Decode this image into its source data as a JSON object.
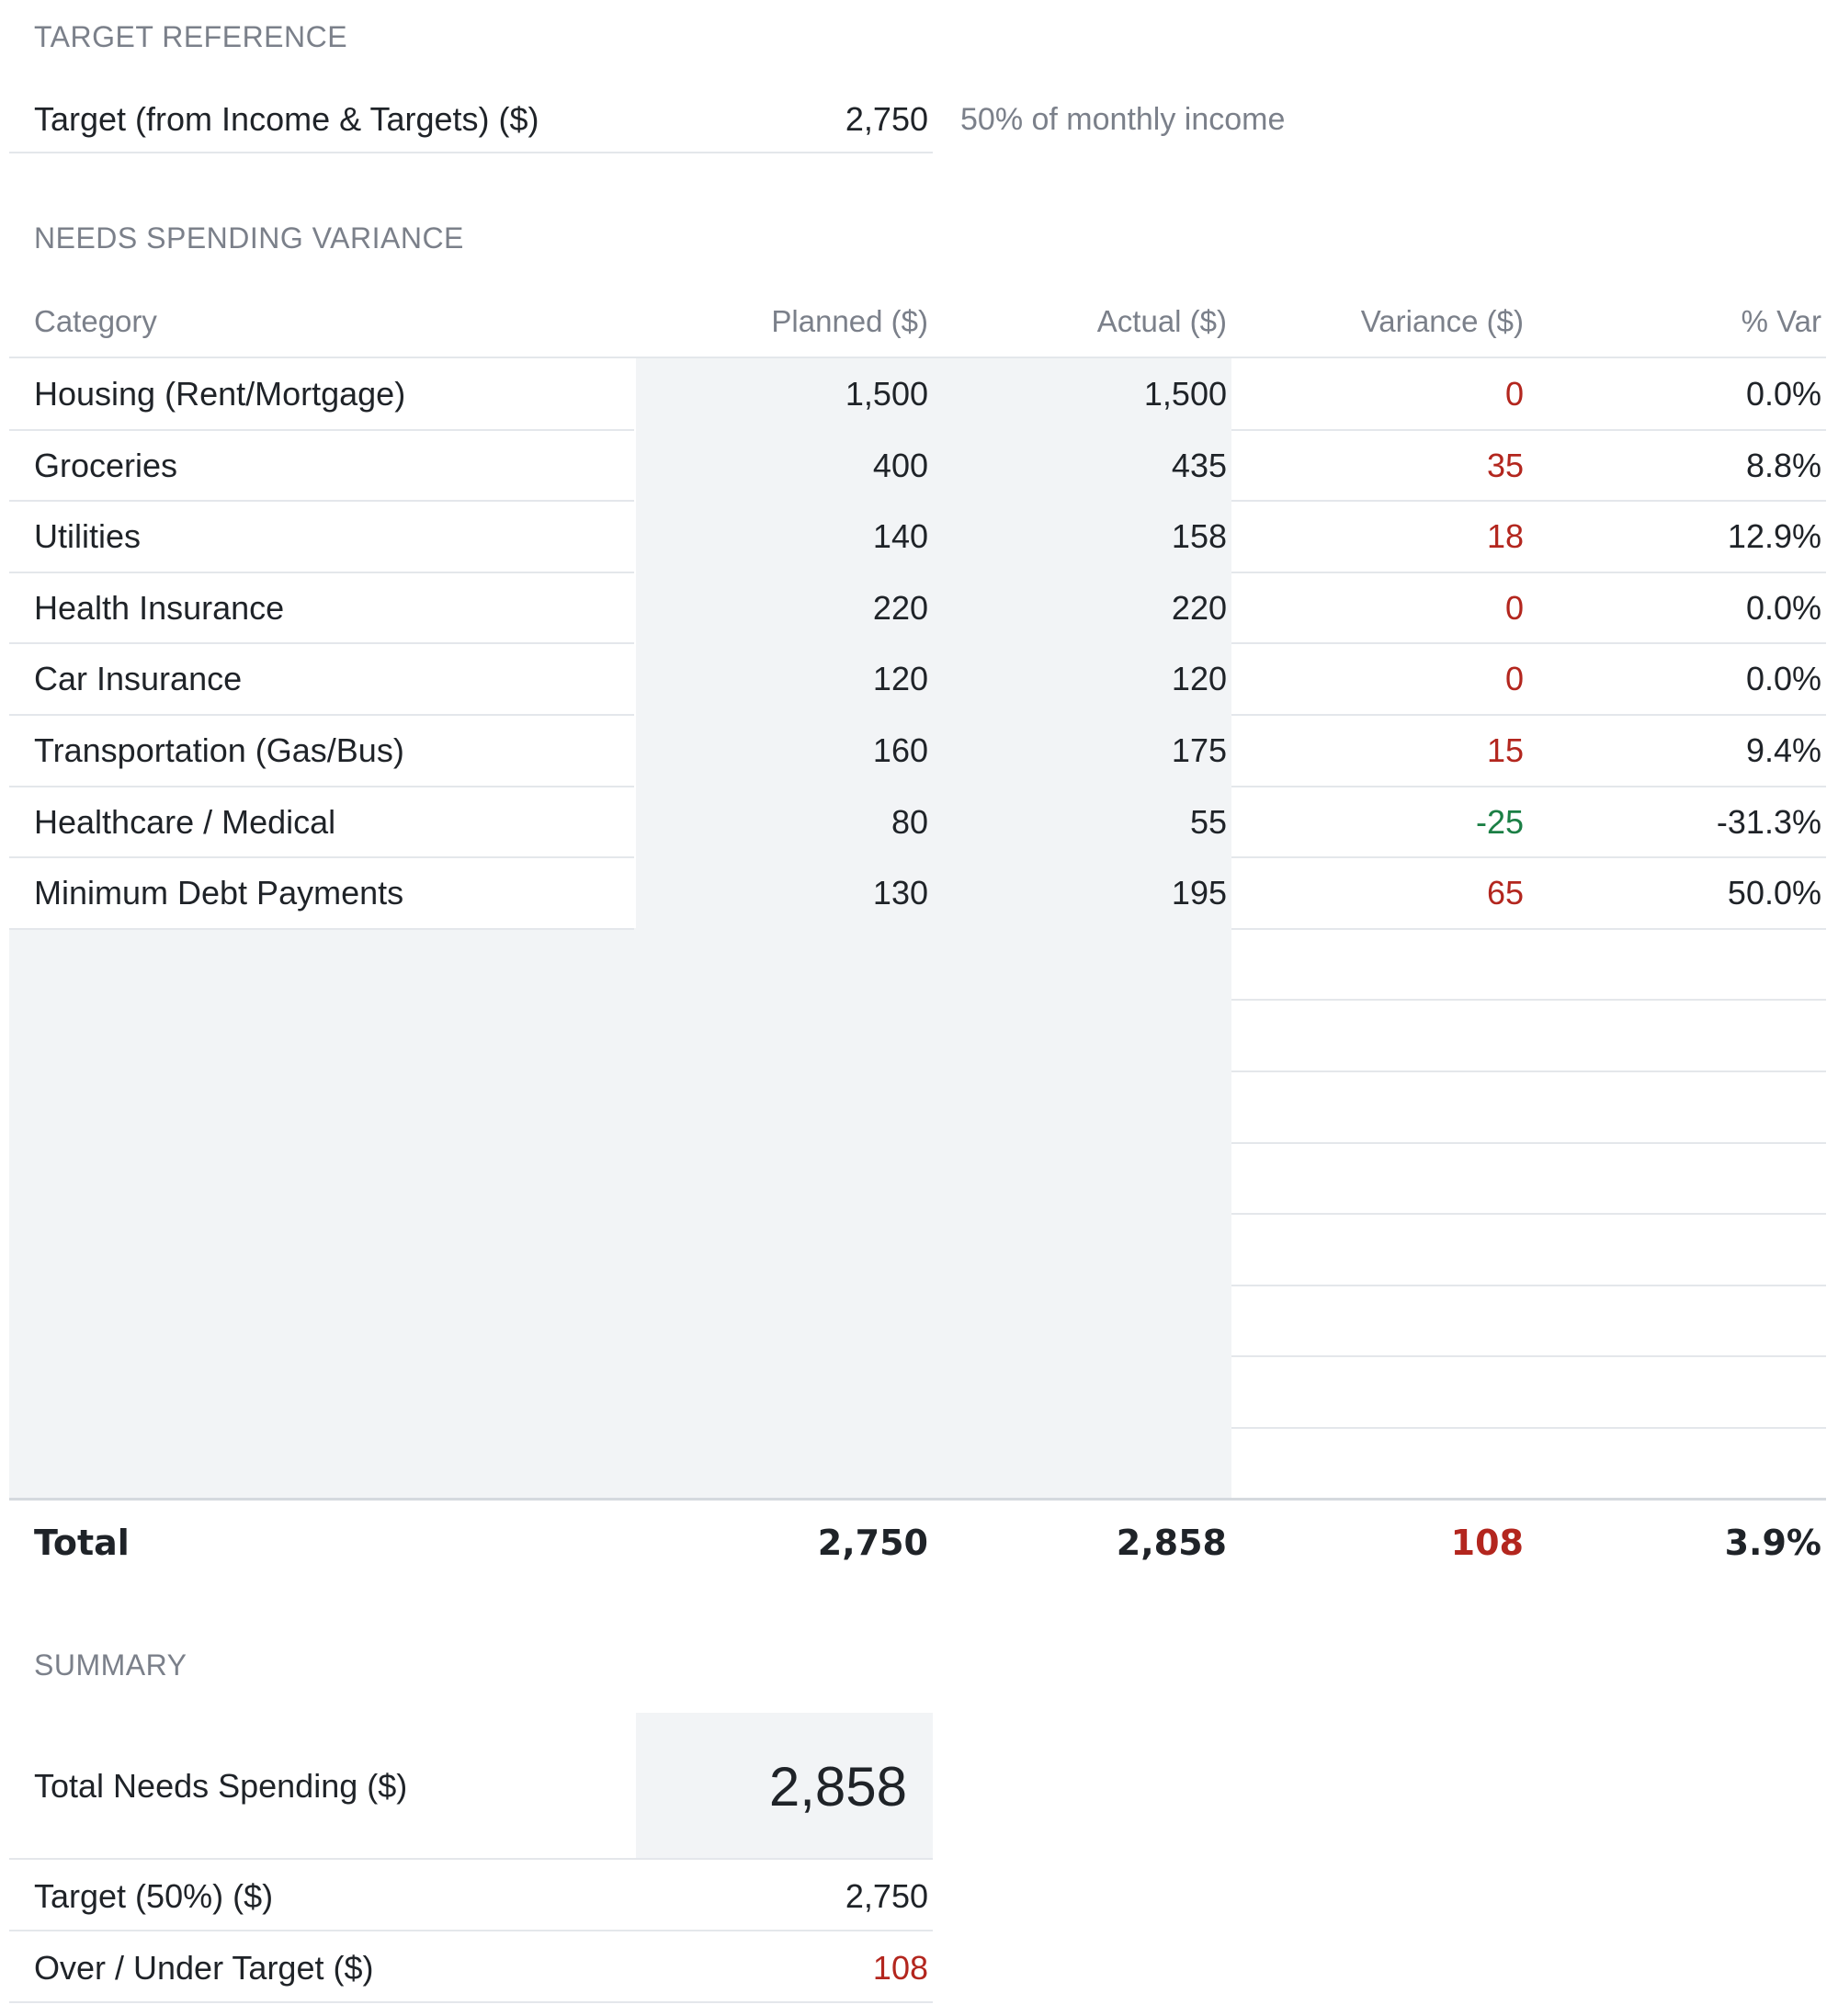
{
  "target_reference": {
    "section_title": "TARGET REFERENCE",
    "label": "Target (from Income & Targets) ($)",
    "value": "2,750",
    "note": "50% of monthly income"
  },
  "variance": {
    "section_title": "NEEDS SPENDING VARIANCE",
    "headers": {
      "category": "Category",
      "planned": "Planned ($)",
      "actual": "Actual ($)",
      "variance": "Variance ($)",
      "pct": "% Var"
    },
    "rows": [
      {
        "category": "Housing (Rent/Mortgage)",
        "planned": "1,500",
        "actual": "1,500",
        "variance": "0",
        "pct": "0.0%",
        "variance_color": "#b3261e"
      },
      {
        "category": "Groceries",
        "planned": "400",
        "actual": "435",
        "variance": "35",
        "pct": "8.8%",
        "variance_color": "#b3261e"
      },
      {
        "category": "Utilities",
        "planned": "140",
        "actual": "158",
        "variance": "18",
        "pct": "12.9%",
        "variance_color": "#b3261e"
      },
      {
        "category": "Health Insurance",
        "planned": "220",
        "actual": "220",
        "variance": "0",
        "pct": "0.0%",
        "variance_color": "#b3261e"
      },
      {
        "category": "Car Insurance",
        "planned": "120",
        "actual": "120",
        "variance": "0",
        "pct": "0.0%",
        "variance_color": "#b3261e"
      },
      {
        "category": "Transportation (Gas/Bus)",
        "planned": "160",
        "actual": "175",
        "variance": "15",
        "pct": "9.4%",
        "variance_color": "#b3261e"
      },
      {
        "category": "Healthcare / Medical",
        "planned": "80",
        "actual": "55",
        "variance": "-25",
        "pct": "-31.3%",
        "variance_color": "#1b7f45"
      },
      {
        "category": "Minimum Debt Payments",
        "planned": "130",
        "actual": "195",
        "variance": "65",
        "pct": "50.0%",
        "variance_color": "#b3261e"
      }
    ],
    "total": {
      "label": "Total",
      "planned": "2,750",
      "actual": "2,858",
      "variance": "108",
      "pct": "3.9%"
    }
  },
  "summary": {
    "section_title": "SUMMARY",
    "total_needs_label": "Total Needs Spending ($)",
    "total_needs_value": "2,858",
    "target_label": "Target (50%) ($)",
    "target_value": "2,750",
    "over_under_label": "Over / Under Target ($)",
    "over_under_value": "108"
  },
  "colors": {
    "over": "#b3261e",
    "under": "#1b7f45",
    "input_shade": "#f2f4f6"
  }
}
